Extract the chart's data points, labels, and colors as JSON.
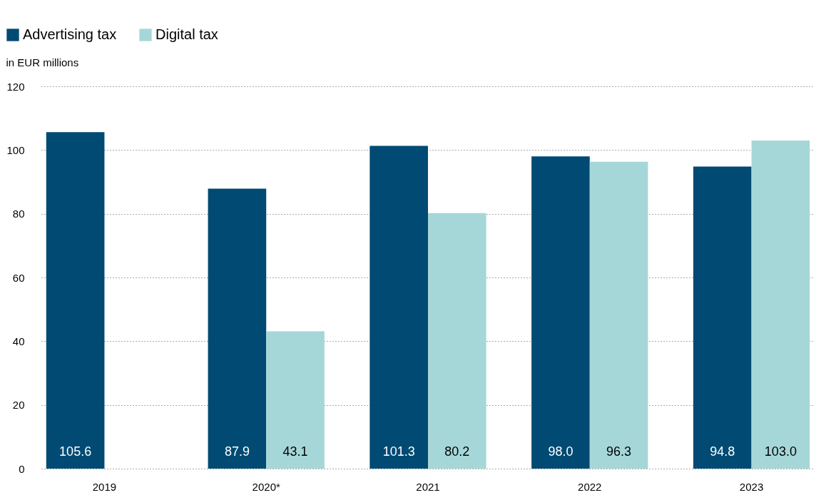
{
  "chart_data": {
    "type": "bar",
    "ylabel": "in EUR millions",
    "categories": [
      "2019",
      "2020*",
      "2021",
      "2022",
      "2023"
    ],
    "series": [
      {
        "name": "Advertising tax",
        "color": "#004a73",
        "values": [
          105.6,
          87.9,
          101.3,
          98.0,
          94.8
        ],
        "value_labels": [
          "105.6",
          "87.9",
          "101.3",
          "98.0",
          "94.8"
        ]
      },
      {
        "name": "Digital tax",
        "color": "#a6d7d8",
        "values": [
          null,
          43.1,
          80.2,
          96.3,
          103.0
        ],
        "value_labels": [
          null,
          "43.1",
          "80.2",
          "96.3",
          "103.0"
        ]
      }
    ],
    "ylim": [
      0,
      120
    ],
    "yticks": [
      0,
      20,
      40,
      60,
      80,
      100,
      120
    ],
    "grid": "y",
    "legend": "top left"
  }
}
